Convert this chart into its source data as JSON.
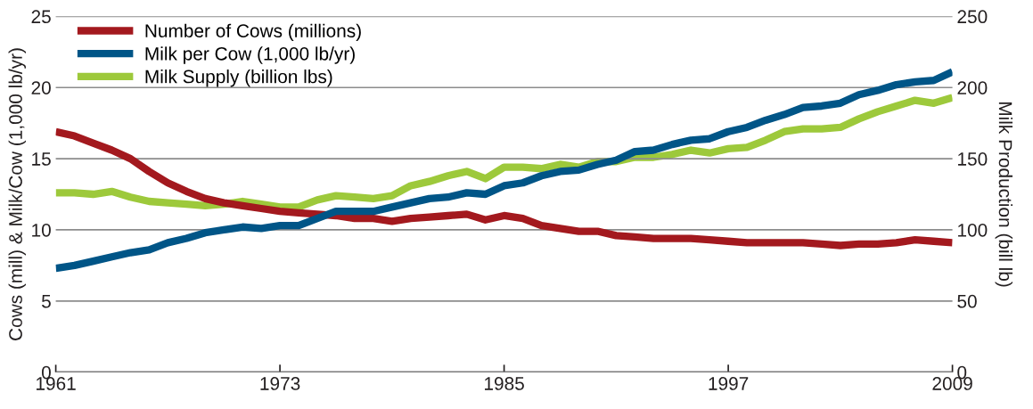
{
  "chart_data": {
    "type": "line",
    "ylabel": "Cows (mill) & Milk/Cow (1,000 lb/yr)",
    "y2label": "Milk Production (bill lb)",
    "x": [
      1961,
      1962,
      1963,
      1964,
      1965,
      1966,
      1967,
      1968,
      1969,
      1970,
      1971,
      1972,
      1973,
      1974,
      1975,
      1976,
      1977,
      1978,
      1979,
      1980,
      1981,
      1982,
      1983,
      1984,
      1985,
      1986,
      1987,
      1988,
      1989,
      1990,
      1991,
      1992,
      1993,
      1994,
      1995,
      1996,
      1997,
      1998,
      1999,
      2000,
      2001,
      2002,
      2003,
      2004,
      2005,
      2006,
      2007,
      2008,
      2009
    ],
    "xlim": [
      1961,
      2009
    ],
    "xticks": [
      1961,
      1973,
      1985,
      1997,
      2009
    ],
    "ylim": [
      0,
      25
    ],
    "yticks": [
      0,
      5,
      10,
      15,
      20,
      25
    ],
    "y2lim": [
      0,
      250
    ],
    "y2ticks": [
      0,
      50,
      100,
      150,
      200,
      250
    ],
    "grid": "y",
    "legend": "top left",
    "marker": "none",
    "line_style": "solid",
    "series": [
      {
        "name": "Number of Cows (millions)",
        "color": "#a3191e",
        "values": [
          16.9,
          16.6,
          16.1,
          15.6,
          15.0,
          14.1,
          13.3,
          12.7,
          12.2,
          11.9,
          11.7,
          11.5,
          11.3,
          11.2,
          11.1,
          11.0,
          10.8,
          10.8,
          10.6,
          10.8,
          10.9,
          11.0,
          11.1,
          10.7,
          11.0,
          10.8,
          10.3,
          10.1,
          9.9,
          9.9,
          9.6,
          9.5,
          9.4,
          9.4,
          9.4,
          9.3,
          9.2,
          9.1,
          9.1,
          9.1,
          9.1,
          9.0,
          8.9,
          9.0,
          9.0,
          9.1,
          9.3,
          9.2,
          9.1
        ]
      },
      {
        "name": "Milk per Cow (1,000 lb/yr)",
        "color": "#005587",
        "values": [
          7.3,
          7.5,
          7.8,
          8.1,
          8.4,
          8.6,
          9.1,
          9.4,
          9.8,
          10.0,
          10.2,
          10.1,
          10.3,
          10.3,
          10.8,
          11.3,
          11.3,
          11.3,
          11.6,
          11.9,
          12.2,
          12.3,
          12.6,
          12.5,
          13.1,
          13.3,
          13.8,
          14.1,
          14.2,
          14.6,
          14.9,
          15.5,
          15.6,
          16.0,
          16.3,
          16.4,
          16.9,
          17.2,
          17.7,
          18.1,
          18.6,
          18.7,
          18.9,
          19.5,
          19.8,
          20.2,
          20.4,
          20.5,
          21.1
        ]
      },
      {
        "name": "Milk Supply (billion lbs)",
        "color": "#9dc93b",
        "axis": "y2",
        "values": [
          126,
          126,
          125,
          127,
          123,
          120,
          119,
          118,
          117,
          118,
          120,
          118,
          116,
          116,
          121,
          124,
          123,
          122,
          124,
          131,
          134,
          138,
          141,
          136,
          144,
          144,
          143,
          146,
          144,
          148,
          148,
          151,
          151,
          153,
          156,
          154,
          157,
          158,
          163,
          169,
          171,
          171,
          172,
          178,
          183,
          187,
          191,
          189,
          193
        ]
      }
    ]
  }
}
